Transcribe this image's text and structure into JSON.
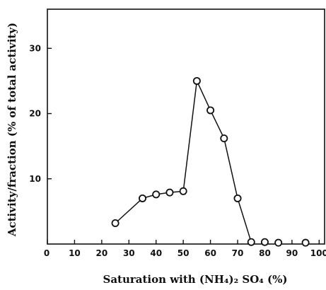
{
  "chart_data": {
    "type": "line",
    "xlabel": "Saturation with (NH₄)₂ SO₄ (%)",
    "ylabel": "Activity/fraction (% of total activity)",
    "xlim": [
      0,
      102
    ],
    "ylim": [
      0,
      36
    ],
    "xticks": [
      0,
      10,
      20,
      30,
      40,
      50,
      60,
      70,
      80,
      90,
      100
    ],
    "xtick_labels": [
      "0",
      "10",
      "20",
      "30",
      "40",
      "50",
      "60",
      "70",
      "80",
      "90",
      "100"
    ],
    "yticks": [
      10,
      20,
      30
    ],
    "ytick_labels": [
      "10",
      "20",
      "30"
    ],
    "grid": false,
    "series": [
      {
        "x": [
          25,
          35,
          40,
          45,
          50,
          55,
          60,
          65,
          70,
          75,
          80,
          85,
          95
        ],
        "y": [
          3.2,
          7.0,
          7.6,
          7.9,
          8.1,
          25.0,
          20.5,
          16.2,
          7.0,
          0.3,
          0.3,
          0.2,
          0.2
        ]
      }
    ],
    "line_connected_points": 10,
    "marker": "open-circle",
    "color": "#111111"
  }
}
